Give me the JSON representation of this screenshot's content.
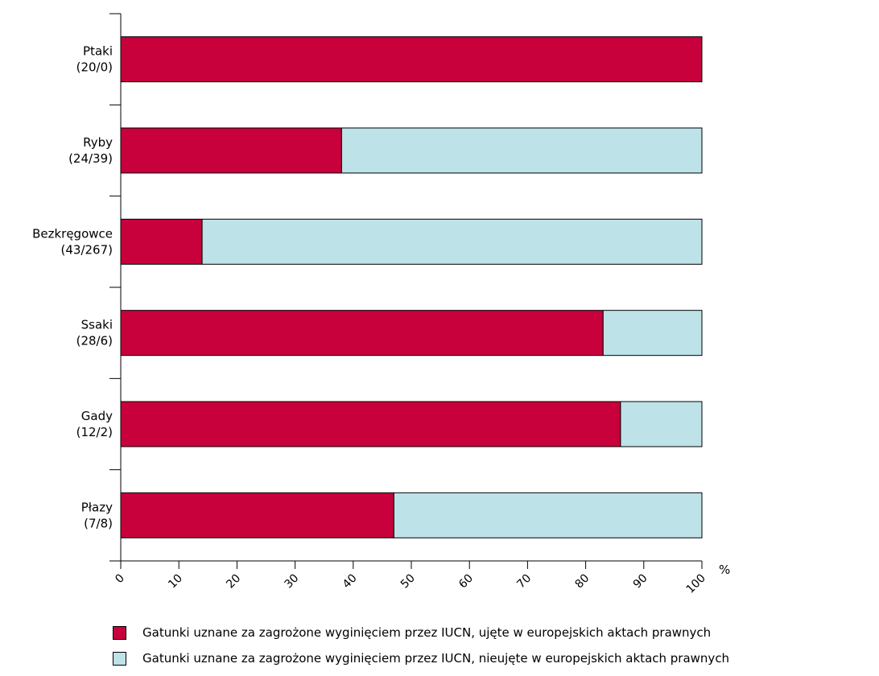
{
  "chart_data": {
    "type": "bar",
    "orientation": "horizontal",
    "stacked": true,
    "categories": [
      [
        "Ptaki",
        "(20/0)"
      ],
      [
        "Ryby",
        "(24/39)"
      ],
      [
        "Bezkręgowce",
        "(43/267)"
      ],
      [
        "Ssaki",
        "(28/6)"
      ],
      [
        "Gady",
        "(12/2)"
      ],
      [
        "Płazy",
        "(7/8)"
      ]
    ],
    "series": [
      {
        "name": "Gatunki uznane za zagrożone wyginięciem przez IUCN, ujęte w europejskich aktach prawnych",
        "color": "#c8003c",
        "values": [
          100,
          38,
          14,
          83,
          86,
          47
        ]
      },
      {
        "name": "Gatunki uznane za zagrożone wyginięciem przez IUCN, nieujęte w europejskich aktach prawnych",
        "color": "#bde2e8",
        "values": [
          0,
          62,
          86,
          17,
          14,
          53
        ]
      }
    ],
    "xlim": [
      0,
      100
    ],
    "xticks": [
      "0",
      "10",
      "20",
      "30",
      "40",
      "50",
      "60",
      "70",
      "80",
      "90",
      "100"
    ],
    "xunit": "%",
    "grid": false,
    "legend_position": "bottom-left"
  }
}
